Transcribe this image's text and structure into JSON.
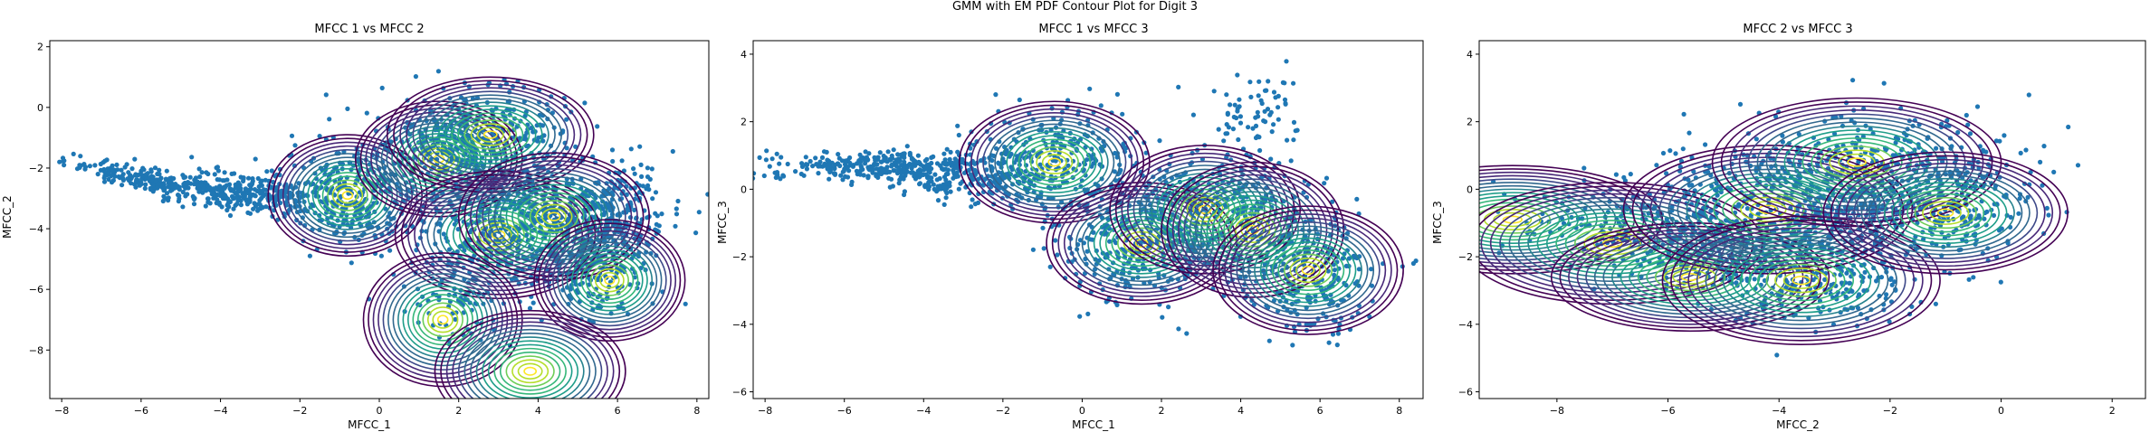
{
  "figure": {
    "suptitle": "GMM with EM PDF Contour Plot for Digit 3"
  },
  "style": {
    "point_color": "#1f77b4",
    "contour_colormap": [
      "#440154",
      "#482878",
      "#3e4989",
      "#31688e",
      "#26828e",
      "#1f9e89",
      "#35b779",
      "#6ece58",
      "#b5de2b",
      "#fde725"
    ]
  },
  "chart_data": [
    {
      "type": "scatter",
      "title": "MFCC 1 vs MFCC 2",
      "xlabel": "MFCC_1",
      "ylabel": "MFCC_2",
      "xlim": [
        -8.3,
        8.3
      ],
      "ylim": [
        -9.6,
        2.2
      ],
      "xticks": [
        -8,
        -6,
        -4,
        -2,
        0,
        2,
        4,
        6,
        8
      ],
      "yticks": [
        -8,
        -6,
        -4,
        -2,
        0,
        2
      ],
      "point_clusters": [
        {
          "center": [
            -5.5,
            -2.5
          ],
          "spread": [
            1.2,
            0.2
          ],
          "tilt": -0.3,
          "count": 260
        },
        {
          "center": [
            -3.0,
            -2.8
          ],
          "spread": [
            0.9,
            0.3
          ],
          "tilt": -0.2,
          "count": 240
        },
        {
          "center": [
            -0.8,
            -2.9
          ],
          "spread": [
            0.8,
            0.9
          ],
          "tilt": 0,
          "count": 260
        },
        {
          "center": [
            1.5,
            -1.7
          ],
          "spread": [
            0.9,
            0.8
          ],
          "tilt": 0,
          "count": 220
        },
        {
          "center": [
            2.8,
            -0.9
          ],
          "spread": [
            1.1,
            0.8
          ],
          "tilt": 0,
          "count": 300
        },
        {
          "center": [
            3.0,
            -4.2
          ],
          "spread": [
            1.1,
            0.9
          ],
          "tilt": 0,
          "count": 320
        },
        {
          "center": [
            4.4,
            -3.6
          ],
          "spread": [
            1.0,
            0.8
          ],
          "tilt": 0,
          "count": 260
        },
        {
          "center": [
            6.0,
            -3.5
          ],
          "spread": [
            0.6,
            0.9
          ],
          "tilt": 0,
          "count": 220
        },
        {
          "center": [
            5.5,
            -5.4
          ],
          "spread": [
            0.7,
            0.8
          ],
          "tilt": 0,
          "count": 160
        },
        {
          "center": [
            2.0,
            -6.6
          ],
          "spread": [
            0.6,
            0.6
          ],
          "tilt": 0,
          "count": 60
        }
      ],
      "gaussian_components": [
        {
          "mean": [
            -0.8,
            -2.9
          ],
          "radius": [
            2.0,
            2.0
          ],
          "angle": 0
        },
        {
          "mean": [
            1.5,
            -1.7
          ],
          "radius": [
            2.1,
            1.9
          ],
          "angle": 0
        },
        {
          "mean": [
            2.8,
            -0.9
          ],
          "radius": [
            2.6,
            1.9
          ],
          "angle": 0
        },
        {
          "mean": [
            3.0,
            -4.2
          ],
          "radius": [
            2.6,
            2.1
          ],
          "angle": 0
        },
        {
          "mean": [
            4.4,
            -3.6
          ],
          "radius": [
            2.4,
            2.1
          ],
          "angle": 0
        },
        {
          "mean": [
            5.8,
            -5.7
          ],
          "radius": [
            1.9,
            2.0
          ],
          "angle": 0
        },
        {
          "mean": [
            1.6,
            -7.0
          ],
          "radius": [
            2.0,
            2.2
          ],
          "angle": 0
        },
        {
          "mean": [
            3.8,
            -8.7
          ],
          "radius": [
            2.4,
            2.0
          ],
          "angle": 0
        }
      ]
    },
    {
      "type": "scatter",
      "title": "MFCC 1 vs MFCC 3",
      "xlabel": "MFCC_1",
      "ylabel": "MFCC_3",
      "xlim": [
        -8.3,
        8.6
      ],
      "ylim": [
        -6.2,
        4.4
      ],
      "xticks": [
        -8,
        -6,
        -4,
        -2,
        0,
        2,
        4,
        6,
        8
      ],
      "yticks": [
        -6,
        -4,
        -2,
        0,
        2,
        4
      ],
      "point_clusters": [
        {
          "center": [
            -5.5,
            0.7
          ],
          "spread": [
            1.3,
            0.2
          ],
          "tilt": 0,
          "count": 260
        },
        {
          "center": [
            -3.0,
            0.4
          ],
          "spread": [
            1.0,
            0.4
          ],
          "tilt": 0,
          "count": 240
        },
        {
          "center": [
            -0.7,
            0.8
          ],
          "spread": [
            1.0,
            0.8
          ],
          "tilt": 0,
          "count": 280
        },
        {
          "center": [
            1.5,
            -1.6
          ],
          "spread": [
            1.0,
            0.9
          ],
          "tilt": 0,
          "count": 300
        },
        {
          "center": [
            3.2,
            -0.6
          ],
          "spread": [
            1.1,
            0.9
          ],
          "tilt": 0,
          "count": 300
        },
        {
          "center": [
            5.7,
            -2.4
          ],
          "spread": [
            0.9,
            1.0
          ],
          "tilt": 0,
          "count": 260
        },
        {
          "center": [
            4.4,
            2.2
          ],
          "spread": [
            0.6,
            0.7
          ],
          "tilt": 0,
          "count": 70
        }
      ],
      "gaussian_components": [
        {
          "mean": [
            -0.7,
            0.8
          ],
          "radius": [
            2.4,
            1.8
          ],
          "angle": 0
        },
        {
          "mean": [
            1.5,
            -1.6
          ],
          "radius": [
            2.4,
            1.8
          ],
          "angle": 0
        },
        {
          "mean": [
            3.1,
            -0.6
          ],
          "radius": [
            2.4,
            1.9
          ],
          "angle": 0
        },
        {
          "mean": [
            4.3,
            -1.2
          ],
          "radius": [
            2.3,
            2.0
          ],
          "angle": 0
        },
        {
          "mean": [
            5.7,
            -2.4
          ],
          "radius": [
            2.4,
            1.9
          ],
          "angle": 0
        }
      ]
    },
    {
      "type": "scatter",
      "title": "MFCC 2 vs MFCC 3",
      "xlabel": "MFCC_2",
      "ylabel": "MFCC_3",
      "xlim": [
        -9.4,
        2.6
      ],
      "ylim": [
        -6.2,
        4.4
      ],
      "xticks": [
        -8,
        -6,
        -4,
        -2,
        0,
        2
      ],
      "yticks": [
        -6,
        -4,
        -2,
        0,
        2,
        4
      ],
      "point_clusters": [
        {
          "center": [
            -4.0,
            -0.6
          ],
          "spread": [
            1.3,
            0.9
          ],
          "tilt": 0,
          "count": 380
        },
        {
          "center": [
            -2.4,
            0.6
          ],
          "spread": [
            1.3,
            0.8
          ],
          "tilt": 0,
          "count": 360
        },
        {
          "center": [
            -1.0,
            -0.6
          ],
          "spread": [
            0.8,
            0.8
          ],
          "tilt": 0,
          "count": 220
        },
        {
          "center": [
            -3.4,
            -2.6
          ],
          "spread": [
            1.0,
            0.8
          ],
          "tilt": 0,
          "count": 280
        },
        {
          "center": [
            -6.5,
            -1.0
          ],
          "spread": [
            1.2,
            0.6
          ],
          "tilt": 0,
          "count": 160
        },
        {
          "center": [
            -5.5,
            -2.0
          ],
          "spread": [
            0.8,
            0.6
          ],
          "tilt": 0,
          "count": 120
        }
      ],
      "gaussian_components": [
        {
          "mean": [
            -8.8,
            -0.9
          ],
          "radius": [
            2.7,
            1.6
          ],
          "angle": 0
        },
        {
          "mean": [
            -7.0,
            -1.6
          ],
          "radius": [
            2.7,
            1.8
          ],
          "angle": 0
        },
        {
          "mean": [
            -5.6,
            -2.6
          ],
          "radius": [
            2.5,
            1.6
          ],
          "angle": 0
        },
        {
          "mean": [
            -4.2,
            -0.6
          ],
          "radius": [
            2.6,
            1.9
          ],
          "angle": 0
        },
        {
          "mean": [
            -3.6,
            -2.7
          ],
          "radius": [
            2.5,
            1.9
          ],
          "angle": 0
        },
        {
          "mean": [
            -2.6,
            0.8
          ],
          "radius": [
            2.6,
            1.9
          ],
          "angle": 0
        },
        {
          "mean": [
            -1.0,
            -0.7
          ],
          "radius": [
            2.2,
            1.8
          ],
          "angle": 0
        }
      ]
    }
  ]
}
